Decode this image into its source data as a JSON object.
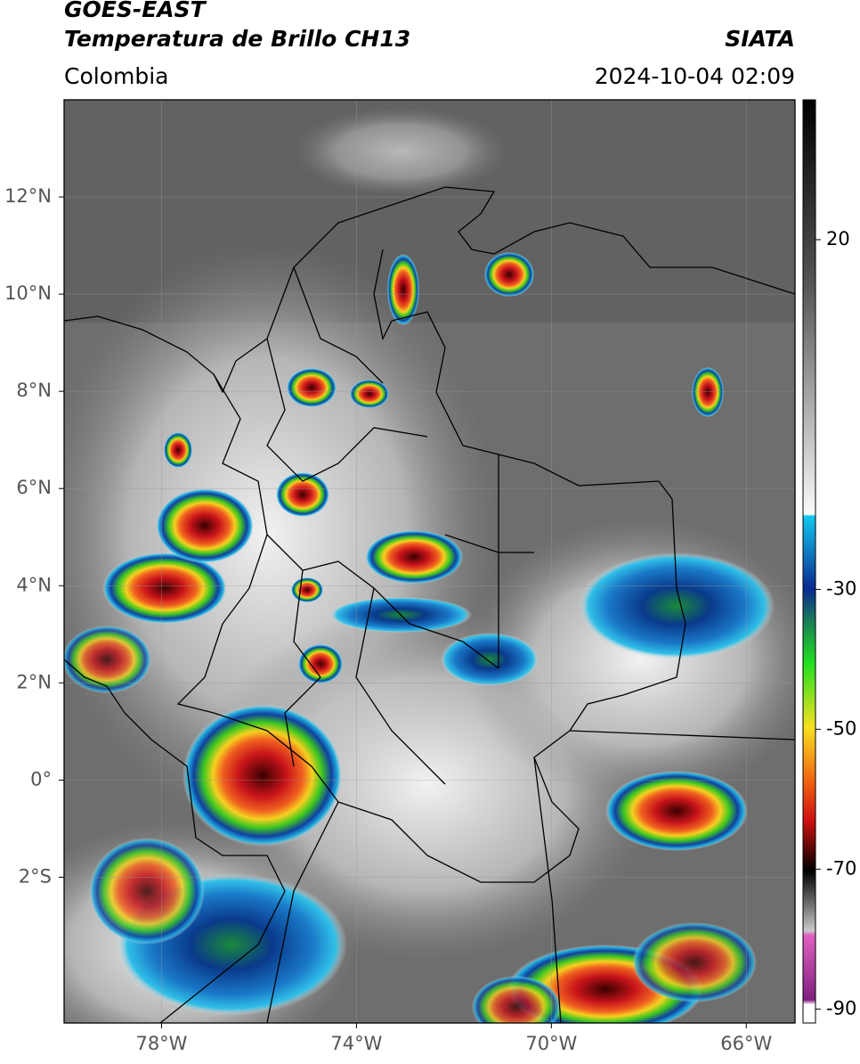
{
  "header": {
    "satellite": "GOES-EAST",
    "product": "Temperatura de Brillo CH13",
    "source": "SIATA",
    "region": "Colombia",
    "datetime": "2024-10-04 02:09"
  },
  "map": {
    "xlim": [
      -80,
      -65
    ],
    "ylim": [
      -5,
      14
    ],
    "xticks": [
      {
        "value": -78,
        "label": "78°W"
      },
      {
        "value": -74,
        "label": "74°W"
      },
      {
        "value": -70,
        "label": "70°W"
      },
      {
        "value": -66,
        "label": "66°W"
      }
    ],
    "yticks": [
      {
        "value": 12,
        "label": "12°N"
      },
      {
        "value": 10,
        "label": "10°N"
      },
      {
        "value": 8,
        "label": "8°N"
      },
      {
        "value": 6,
        "label": "6°N"
      },
      {
        "value": 4,
        "label": "4°N"
      },
      {
        "value": 2,
        "label": "2°N"
      },
      {
        "value": 0,
        "label": "0°"
      },
      {
        "value": -2,
        "label": "2°S"
      }
    ],
    "grid": true
  },
  "colorbar": {
    "lim": [
      -92,
      40
    ],
    "ticks": [
      20,
      -30,
      -50,
      -70,
      -90
    ]
  }
}
